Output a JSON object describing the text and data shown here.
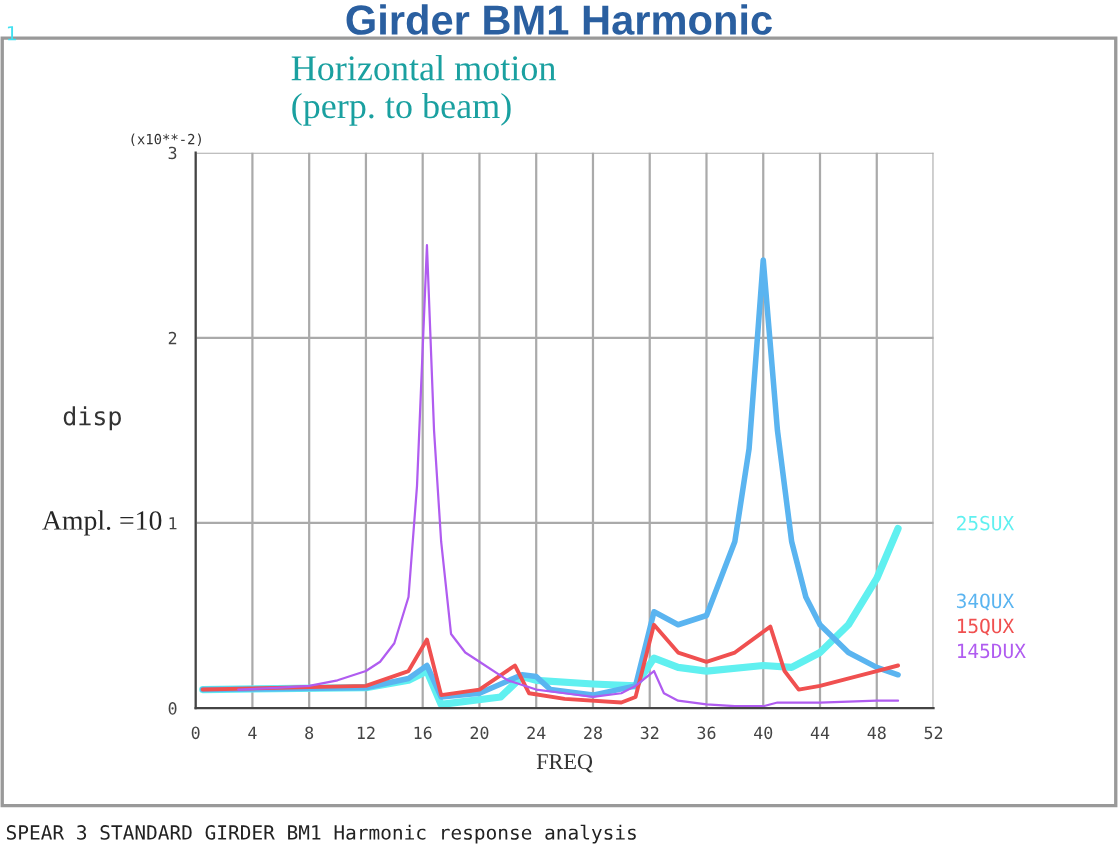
{
  "chart_data": {
    "type": "line",
    "title": "Girder BM1 Harmonic",
    "subtitle": "Horizontal motion\n(perp. to beam)",
    "xlabel": "FREQ",
    "ylabel": "disp",
    "annotations": [
      "1",
      "(x10**-2)",
      "Ampl. =10",
      "SPEAR 3 STANDARD GIRDER BM1 Harmonic response analysis"
    ],
    "xlim": [
      0,
      52
    ],
    "xticks": [
      0,
      4,
      8,
      12,
      16,
      20,
      24,
      28,
      32,
      36,
      40,
      44,
      48,
      52
    ],
    "ylim": [
      0,
      3
    ],
    "yticks": [
      0,
      1,
      2,
      3
    ],
    "grid": true,
    "legend": "right",
    "marker": "none",
    "line_style": "solid",
    "series": [
      {
        "name": "25SUX",
        "color": "#60f0f0",
        "x": [
          0.5,
          12,
          15,
          16.3,
          17.3,
          21.5,
          23,
          24,
          28,
          31,
          32.3,
          34,
          36,
          40,
          42,
          44,
          46,
          48,
          49.5
        ],
        "values": [
          0.1,
          0.11,
          0.15,
          0.2,
          0.02,
          0.06,
          0.17,
          0.15,
          0.13,
          0.12,
          0.27,
          0.22,
          0.2,
          0.23,
          0.22,
          0.3,
          0.45,
          0.7,
          0.97
        ]
      },
      {
        "name": "34QUX",
        "color": "#5ab4f0",
        "x": [
          0.5,
          12,
          15,
          16.3,
          17.3,
          20,
          23,
          24,
          25,
          28,
          31,
          32.3,
          34,
          36,
          38,
          39,
          40,
          41,
          42,
          43,
          44,
          46,
          48,
          49.5
        ],
        "values": [
          0.1,
          0.11,
          0.16,
          0.23,
          0.06,
          0.08,
          0.18,
          0.17,
          0.1,
          0.07,
          0.12,
          0.52,
          0.45,
          0.5,
          0.9,
          1.4,
          2.42,
          1.5,
          0.9,
          0.6,
          0.45,
          0.3,
          0.22,
          0.18
        ]
      },
      {
        "name": "15QUX",
        "color": "#f05050",
        "x": [
          0.5,
          12,
          15,
          16.3,
          17.3,
          20,
          22.5,
          23.5,
          26,
          30,
          31,
          32.3,
          34,
          36,
          38,
          40.5,
          41.5,
          42.5,
          44,
          48,
          49.5
        ],
        "values": [
          0.1,
          0.12,
          0.2,
          0.37,
          0.07,
          0.1,
          0.23,
          0.08,
          0.05,
          0.03,
          0.06,
          0.45,
          0.3,
          0.25,
          0.3,
          0.44,
          0.2,
          0.1,
          0.12,
          0.2,
          0.23
        ]
      },
      {
        "name": "145DUX",
        "color": "#b05cf0",
        "x": [
          3,
          6,
          8,
          10,
          12,
          13,
          14,
          15,
          15.6,
          16.3,
          16.8,
          17.3,
          18,
          19,
          20,
          22,
          24,
          26,
          28,
          30,
          31,
          32.3,
          33,
          34,
          36,
          38,
          40,
          41,
          44,
          48,
          49.5
        ],
        "values": [
          0.1,
          0.11,
          0.12,
          0.15,
          0.2,
          0.25,
          0.35,
          0.6,
          1.2,
          2.5,
          1.5,
          0.9,
          0.4,
          0.3,
          0.25,
          0.15,
          0.1,
          0.08,
          0.06,
          0.08,
          0.12,
          0.2,
          0.08,
          0.04,
          0.02,
          0.01,
          0.01,
          0.03,
          0.03,
          0.04,
          0.04
        ]
      }
    ]
  }
}
